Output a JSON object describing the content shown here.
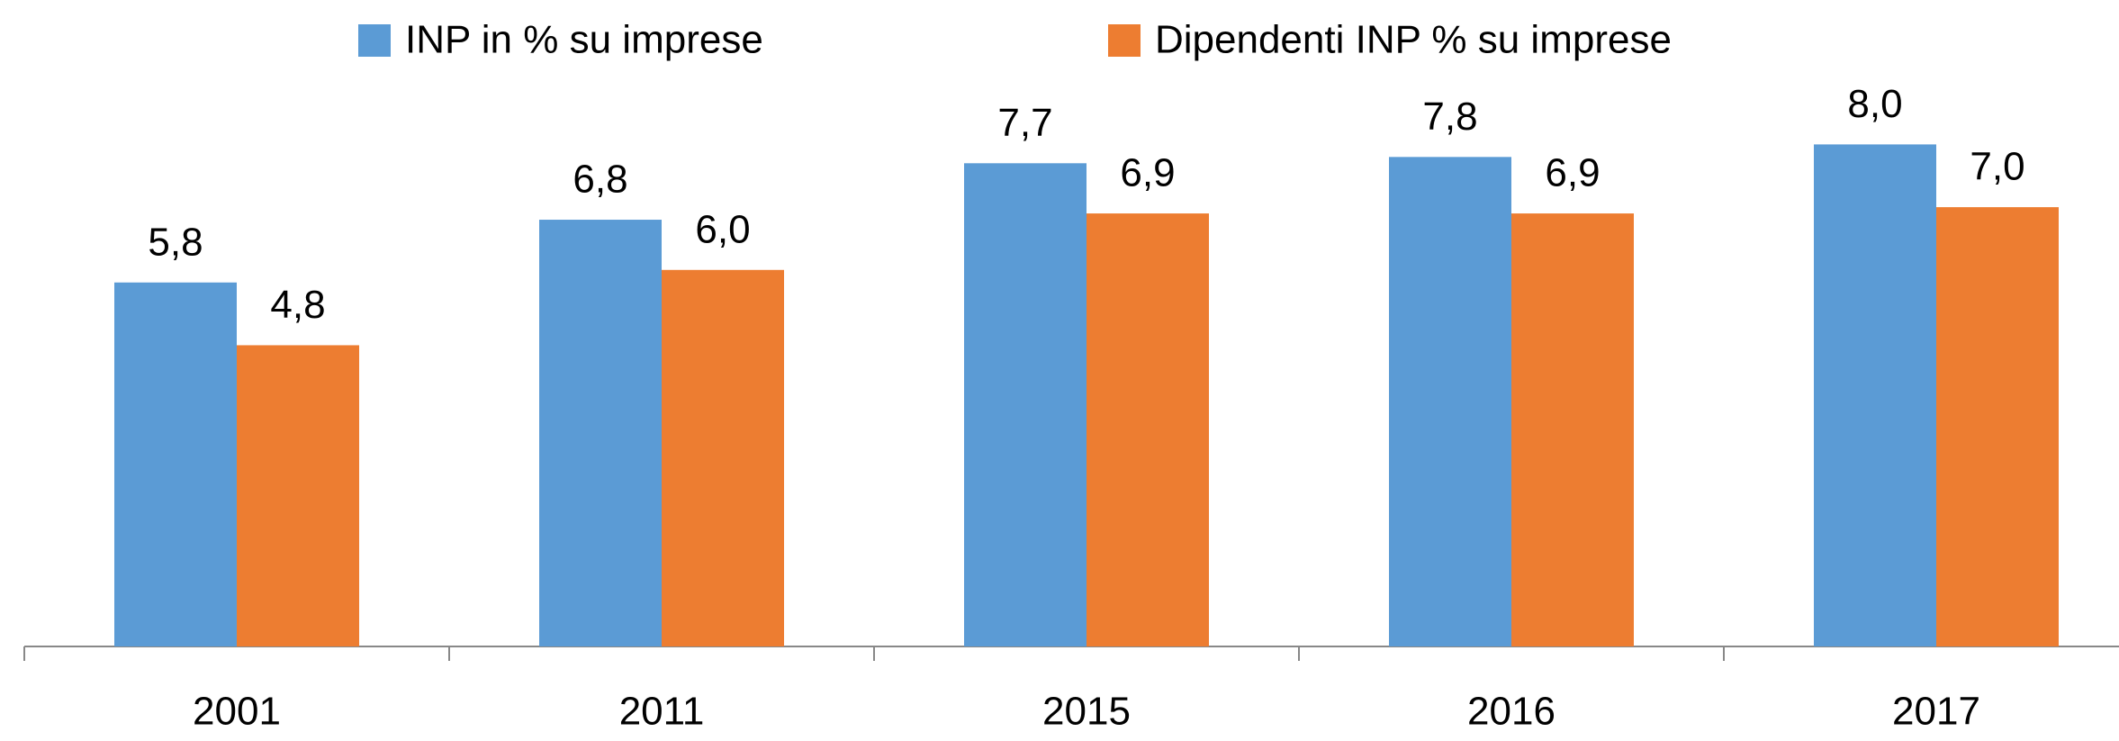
{
  "chart_data": {
    "type": "bar",
    "categories": [
      "2001",
      "2011",
      "2015",
      "2016",
      "2017"
    ],
    "series": [
      {
        "name": "INP in % su imprese",
        "color": "#5b9bd5",
        "values": [
          5.8,
          6.8,
          7.7,
          7.8,
          8.0
        ],
        "value_labels": [
          "5,8",
          "6,8",
          "7,7",
          "7,8",
          "8,0"
        ]
      },
      {
        "name": "Dipendenti INP % su imprese",
        "color": "#ed7d31",
        "values": [
          4.8,
          6.0,
          6.9,
          6.9,
          7.0
        ],
        "value_labels": [
          "4,8",
          "6,0",
          "6,9",
          "6,9",
          "7,0"
        ]
      }
    ],
    "legend": "top"
  }
}
